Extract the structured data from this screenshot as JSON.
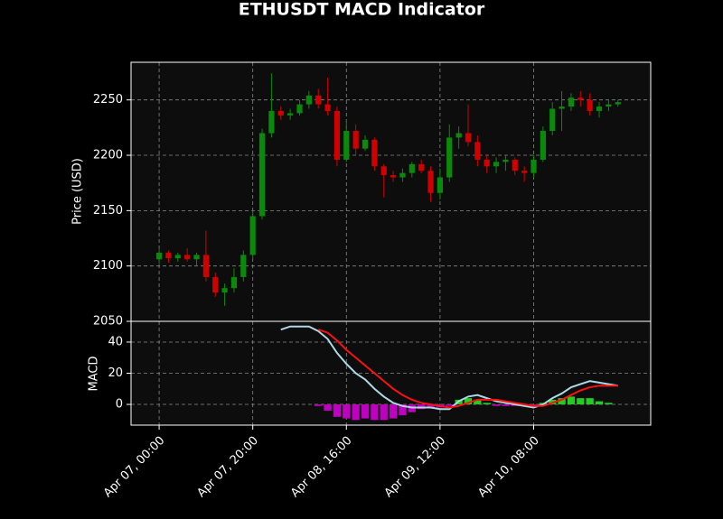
{
  "chart_data": [
    {
      "type": "candlestick",
      "title": "ETHUSDT MACD Indicator",
      "ylabel": "Price (USD)",
      "x": [
        "Apr 07, 00:00",
        "Apr 07, 02:00",
        "Apr 07, 04:00",
        "Apr 07, 06:00",
        "Apr 07, 08:00",
        "Apr 07, 10:00",
        "Apr 07, 12:00",
        "Apr 07, 14:00",
        "Apr 07, 16:00",
        "Apr 07, 18:00",
        "Apr 07, 20:00",
        "Apr 07, 22:00",
        "Apr 08, 00:00",
        "Apr 08, 02:00",
        "Apr 08, 04:00",
        "Apr 08, 06:00",
        "Apr 08, 08:00",
        "Apr 08, 10:00",
        "Apr 08, 12:00",
        "Apr 08, 14:00",
        "Apr 08, 16:00",
        "Apr 08, 18:00",
        "Apr 08, 20:00",
        "Apr 08, 22:00",
        "Apr 09, 00:00",
        "Apr 09, 02:00",
        "Apr 09, 04:00",
        "Apr 09, 06:00",
        "Apr 09, 08:00",
        "Apr 09, 10:00",
        "Apr 09, 12:00",
        "Apr 09, 14:00",
        "Apr 09, 16:00",
        "Apr 09, 18:00",
        "Apr 09, 20:00",
        "Apr 09, 22:00",
        "Apr 10, 00:00",
        "Apr 10, 02:00",
        "Apr 10, 04:00",
        "Apr 10, 06:00",
        "Apr 10, 08:00",
        "Apr 10, 10:00",
        "Apr 10, 12:00",
        "Apr 10, 14:00",
        "Apr 10, 16:00",
        "Apr 10, 18:00",
        "Apr 10, 20:00",
        "Apr 10, 22:00",
        "Apr 11, 00:00",
        "Apr 11, 02:00"
      ],
      "open": [
        2106,
        2112,
        2107,
        2110,
        2106,
        2110,
        2090,
        2076,
        2080,
        2090,
        2110,
        2145,
        2220,
        2240,
        2236,
        2238,
        2246,
        2254,
        2246,
        2240,
        2196,
        2222,
        2206,
        2214,
        2190,
        2182,
        2180,
        2184,
        2192,
        2186,
        2166,
        2180,
        2216,
        2220,
        2212,
        2196,
        2190,
        2194,
        2196,
        2186,
        2184,
        2196,
        2222,
        2242,
        2244,
        2252,
        2250,
        2240,
        2244,
        2246
      ],
      "high": [
        2115,
        2114,
        2112,
        2116,
        2112,
        2132,
        2094,
        2084,
        2098,
        2114,
        2150,
        2224,
        2274,
        2244,
        2242,
        2250,
        2258,
        2260,
        2270,
        2244,
        2232,
        2228,
        2218,
        2216,
        2192,
        2186,
        2188,
        2194,
        2196,
        2190,
        2188,
        2228,
        2226,
        2246,
        2218,
        2200,
        2198,
        2200,
        2198,
        2190,
        2200,
        2226,
        2248,
        2258,
        2256,
        2258,
        2256,
        2248,
        2250,
        2250
      ],
      "low": [
        2102,
        2103,
        2104,
        2104,
        2100,
        2086,
        2072,
        2064,
        2076,
        2086,
        2106,
        2142,
        2216,
        2232,
        2232,
        2236,
        2242,
        2242,
        2236,
        2190,
        2194,
        2200,
        2204,
        2186,
        2162,
        2176,
        2176,
        2180,
        2184,
        2158,
        2160,
        2176,
        2206,
        2208,
        2190,
        2184,
        2184,
        2186,
        2182,
        2176,
        2180,
        2194,
        2218,
        2222,
        2240,
        2244,
        2236,
        2234,
        2240,
        2244
      ],
      "close": [
        2112,
        2107,
        2110,
        2106,
        2110,
        2090,
        2076,
        2080,
        2090,
        2110,
        2145,
        2220,
        2240,
        2236,
        2238,
        2246,
        2254,
        2246,
        2240,
        2196,
        2222,
        2206,
        2214,
        2190,
        2182,
        2180,
        2184,
        2192,
        2186,
        2166,
        2180,
        2216,
        2220,
        2212,
        2196,
        2190,
        2194,
        2196,
        2186,
        2184,
        2196,
        2222,
        2242,
        2244,
        2252,
        2250,
        2240,
        2244,
        2246,
        2248
      ],
      "up_color": "#0a8a0a",
      "down_color": "#d10000",
      "xlim": [
        "Apr 06, 18:00",
        "Apr 11, 09:00"
      ],
      "ylim": [
        2050,
        2284
      ],
      "yticks": [
        2050,
        2100,
        2150,
        2200,
        2250
      ],
      "grid": true
    },
    {
      "type": "macd",
      "ylabel": "MACD",
      "lines": [
        {
          "color": "#add8e6",
          "values": [
            null,
            null,
            null,
            null,
            null,
            null,
            null,
            null,
            null,
            null,
            null,
            null,
            null,
            48,
            50,
            50,
            50,
            47,
            42,
            33,
            26,
            20,
            16,
            10,
            5,
            1,
            -1,
            -2,
            -2,
            -2,
            -3,
            -3,
            2,
            5,
            6,
            4,
            2,
            1,
            0,
            -1,
            -2,
            0,
            4,
            7,
            11,
            13,
            15,
            14,
            13,
            12
          ]
        },
        {
          "color": "#ff1010",
          "values": [
            null,
            null,
            null,
            null,
            null,
            null,
            null,
            null,
            null,
            null,
            null,
            null,
            null,
            null,
            null,
            null,
            null,
            48,
            46,
            41,
            35,
            30,
            25,
            20,
            15,
            10,
            6,
            3,
            1,
            0,
            -1,
            -2,
            -1,
            1,
            3,
            3,
            3,
            2,
            1,
            0,
            -1,
            -1,
            1,
            3,
            6,
            9,
            11,
            12,
            12,
            12
          ]
        }
      ],
      "histogram": {
        "positive_color": "#22cc22",
        "negative_color": "#c000c0",
        "values": [
          null,
          null,
          null,
          null,
          null,
          null,
          null,
          null,
          null,
          null,
          null,
          null,
          null,
          null,
          null,
          null,
          null,
          -1,
          -4,
          -8,
          -9,
          -10,
          -9,
          -10,
          -10,
          -9,
          -7,
          -5,
          -3,
          -2,
          -2,
          -1,
          3,
          4,
          3,
          1,
          -1,
          -1,
          -1,
          -1,
          -1,
          1,
          3,
          4,
          5,
          4,
          4,
          2,
          1,
          0
        ]
      },
      "xticks": [
        "Apr 07, 00:00",
        "Apr 07, 20:00",
        "Apr 08, 16:00",
        "Apr 09, 12:00",
        "Apr 10, 08:00"
      ],
      "ylim": [
        -13.3,
        53.3
      ],
      "yticks": [
        0,
        20,
        40
      ],
      "grid": true
    }
  ]
}
